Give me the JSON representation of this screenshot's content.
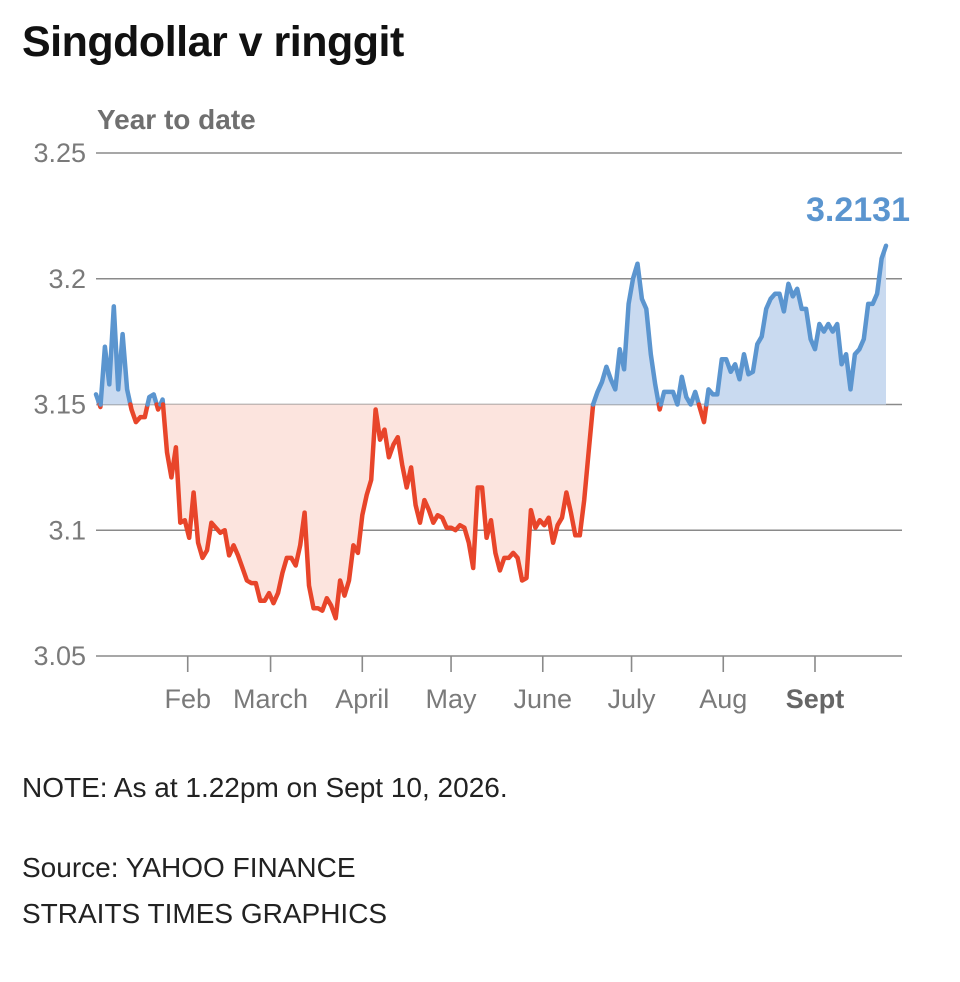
{
  "title": "Singdollar v ringgit",
  "subtitle": "Year to date",
  "note": "NOTE: As at 1.22pm on Sept 10, 2026.",
  "source_lines": [
    "Source: YAHOO FINANCE",
    "STRAITS TIMES GRAPHICS"
  ],
  "colors": {
    "above": "#5b95cf",
    "above_fill": "#c9daf0",
    "below": "#e8452a",
    "below_fill": "#fce4de",
    "grid": "#8a8a8a",
    "tick_text": "#7a7a7a",
    "highlight_text": "#666666"
  },
  "chart_data": {
    "type": "line",
    "title": "Singdollar v ringgit",
    "subtitle": "Year to date",
    "baseline": 3.15,
    "ylim": [
      3.05,
      3.25
    ],
    "yticks": [
      "3.25",
      "3.2",
      "3.15",
      "3.1",
      "3.05"
    ],
    "ytick_values": [
      3.25,
      3.2,
      3.15,
      3.1,
      3.05
    ],
    "xlim_days": [
      0,
      252
    ],
    "month_labels": [
      {
        "label": "Feb",
        "day": 31,
        "bold": false
      },
      {
        "label": "March",
        "day": 59,
        "bold": false
      },
      {
        "label": "April",
        "day": 90,
        "bold": false
      },
      {
        "label": "May",
        "day": 120,
        "bold": false
      },
      {
        "label": "June",
        "day": 151,
        "bold": false
      },
      {
        "label": "July",
        "day": 181,
        "bold": false
      },
      {
        "label": "Aug",
        "day": 212,
        "bold": false
      },
      {
        "label": "Sept",
        "day": 243,
        "bold": true
      }
    ],
    "last_value_label": "3.2131",
    "series": [
      {
        "values": [
          [
            0,
            3.154
          ],
          [
            1.5,
            3.149
          ],
          [
            3,
            3.173
          ],
          [
            4.5,
            3.158
          ],
          [
            6,
            3.189
          ],
          [
            7.5,
            3.156
          ],
          [
            9,
            3.178
          ],
          [
            10.5,
            3.156
          ],
          [
            12,
            3.148
          ],
          [
            13.5,
            3.143
          ],
          [
            15,
            3.145
          ],
          [
            16.5,
            3.145
          ],
          [
            18,
            3.153
          ],
          [
            19.5,
            3.154
          ],
          [
            21,
            3.148
          ],
          [
            22.5,
            3.152
          ],
          [
            24,
            3.131
          ],
          [
            25.5,
            3.121
          ],
          [
            27,
            3.133
          ],
          [
            28.5,
            3.103
          ],
          [
            30,
            3.104
          ],
          [
            31.5,
            3.097
          ],
          [
            33,
            3.115
          ],
          [
            34.5,
            3.095
          ],
          [
            36,
            3.089
          ],
          [
            37.5,
            3.092
          ],
          [
            39,
            3.103
          ],
          [
            40.5,
            3.101
          ],
          [
            42,
            3.099
          ],
          [
            43.5,
            3.1
          ],
          [
            45,
            3.09
          ],
          [
            46.5,
            3.094
          ],
          [
            48,
            3.09
          ],
          [
            49.5,
            3.085
          ],
          [
            51,
            3.08
          ],
          [
            52.5,
            3.079
          ],
          [
            54,
            3.079
          ],
          [
            55.5,
            3.072
          ],
          [
            57,
            3.072
          ],
          [
            58.5,
            3.075
          ],
          [
            60,
            3.071
          ],
          [
            61.5,
            3.075
          ],
          [
            63,
            3.083
          ],
          [
            64.5,
            3.089
          ],
          [
            66,
            3.089
          ],
          [
            67.5,
            3.086
          ],
          [
            69,
            3.094
          ],
          [
            70.5,
            3.107
          ],
          [
            72,
            3.078
          ],
          [
            73.5,
            3.069
          ],
          [
            75,
            3.069
          ],
          [
            76.5,
            3.068
          ],
          [
            78,
            3.073
          ],
          [
            79.5,
            3.07
          ],
          [
            81,
            3.065
          ],
          [
            82.5,
            3.08
          ],
          [
            84,
            3.074
          ],
          [
            85.5,
            3.08
          ],
          [
            87,
            3.094
          ],
          [
            88.5,
            3.091
          ],
          [
            90,
            3.106
          ],
          [
            91.5,
            3.114
          ],
          [
            93,
            3.12
          ],
          [
            94.5,
            3.148
          ],
          [
            96,
            3.136
          ],
          [
            97.5,
            3.14
          ],
          [
            99,
            3.129
          ],
          [
            100.5,
            3.134
          ],
          [
            102,
            3.137
          ],
          [
            103.5,
            3.126
          ],
          [
            105,
            3.117
          ],
          [
            106.5,
            3.125
          ],
          [
            108,
            3.11
          ],
          [
            109.5,
            3.103
          ],
          [
            111,
            3.112
          ],
          [
            112.5,
            3.108
          ],
          [
            114,
            3.103
          ],
          [
            115.5,
            3.106
          ],
          [
            117,
            3.105
          ],
          [
            118.5,
            3.101
          ],
          [
            120,
            3.101
          ],
          [
            121.5,
            3.1
          ],
          [
            123,
            3.102
          ],
          [
            124.5,
            3.101
          ],
          [
            126,
            3.095
          ],
          [
            127.5,
            3.085
          ],
          [
            129,
            3.117
          ],
          [
            130.5,
            3.117
          ],
          [
            132,
            3.097
          ],
          [
            133.5,
            3.104
          ],
          [
            135,
            3.091
          ],
          [
            136.5,
            3.084
          ],
          [
            138,
            3.089
          ],
          [
            139.5,
            3.089
          ],
          [
            141,
            3.091
          ],
          [
            142.5,
            3.089
          ],
          [
            144,
            3.08
          ],
          [
            145.5,
            3.081
          ],
          [
            147,
            3.108
          ],
          [
            148.5,
            3.101
          ],
          [
            150,
            3.104
          ],
          [
            151.5,
            3.102
          ],
          [
            153,
            3.105
          ],
          [
            154.5,
            3.095
          ],
          [
            156,
            3.102
          ],
          [
            157.5,
            3.105
          ],
          [
            159,
            3.115
          ],
          [
            160.5,
            3.107
          ],
          [
            162,
            3.098
          ],
          [
            163.5,
            3.098
          ],
          [
            165,
            3.112
          ],
          [
            166.5,
            3.131
          ],
          [
            168,
            3.15
          ],
          [
            169.5,
            3.155
          ],
          [
            171,
            3.159
          ],
          [
            172.5,
            3.165
          ],
          [
            174,
            3.16
          ],
          [
            175.5,
            3.156
          ],
          [
            177,
            3.172
          ],
          [
            178.5,
            3.164
          ],
          [
            180,
            3.19
          ],
          [
            181.5,
            3.2
          ],
          [
            183,
            3.206
          ],
          [
            184.5,
            3.192
          ],
          [
            186,
            3.188
          ],
          [
            187.5,
            3.17
          ],
          [
            189,
            3.158
          ],
          [
            190.5,
            3.148
          ],
          [
            192,
            3.155
          ],
          [
            193.5,
            3.155
          ],
          [
            195,
            3.155
          ],
          [
            196.5,
            3.15
          ],
          [
            198,
            3.161
          ],
          [
            199.5,
            3.153
          ],
          [
            201,
            3.15
          ],
          [
            202.5,
            3.155
          ],
          [
            204,
            3.149
          ],
          [
            205.5,
            3.143
          ],
          [
            207,
            3.156
          ],
          [
            208.5,
            3.154
          ],
          [
            210,
            3.154
          ],
          [
            211.5,
            3.168
          ],
          [
            213,
            3.168
          ],
          [
            214.5,
            3.163
          ],
          [
            216,
            3.166
          ],
          [
            217.5,
            3.16
          ],
          [
            219,
            3.17
          ],
          [
            220.5,
            3.162
          ],
          [
            222,
            3.163
          ],
          [
            223.5,
            3.174
          ],
          [
            225,
            3.177
          ],
          [
            226.5,
            3.188
          ],
          [
            228,
            3.192
          ],
          [
            229.5,
            3.194
          ],
          [
            231,
            3.194
          ],
          [
            232.5,
            3.187
          ],
          [
            234,
            3.198
          ],
          [
            235.5,
            3.193
          ],
          [
            237,
            3.196
          ],
          [
            238.5,
            3.188
          ],
          [
            240,
            3.188
          ],
          [
            241.5,
            3.176
          ],
          [
            243,
            3.172
          ],
          [
            244.5,
            3.182
          ],
          [
            246,
            3.179
          ],
          [
            247.5,
            3.182
          ],
          [
            249,
            3.179
          ],
          [
            250.5,
            3.182
          ],
          [
            252,
            3.166
          ],
          [
            253.5,
            3.17
          ],
          [
            255,
            3.156
          ],
          [
            256.5,
            3.17
          ],
          [
            258,
            3.172
          ],
          [
            259.5,
            3.176
          ],
          [
            261,
            3.19
          ],
          [
            262.5,
            3.19
          ],
          [
            264,
            3.194
          ],
          [
            265.5,
            3.208
          ],
          [
            267,
            3.2131
          ]
        ]
      }
    ]
  }
}
